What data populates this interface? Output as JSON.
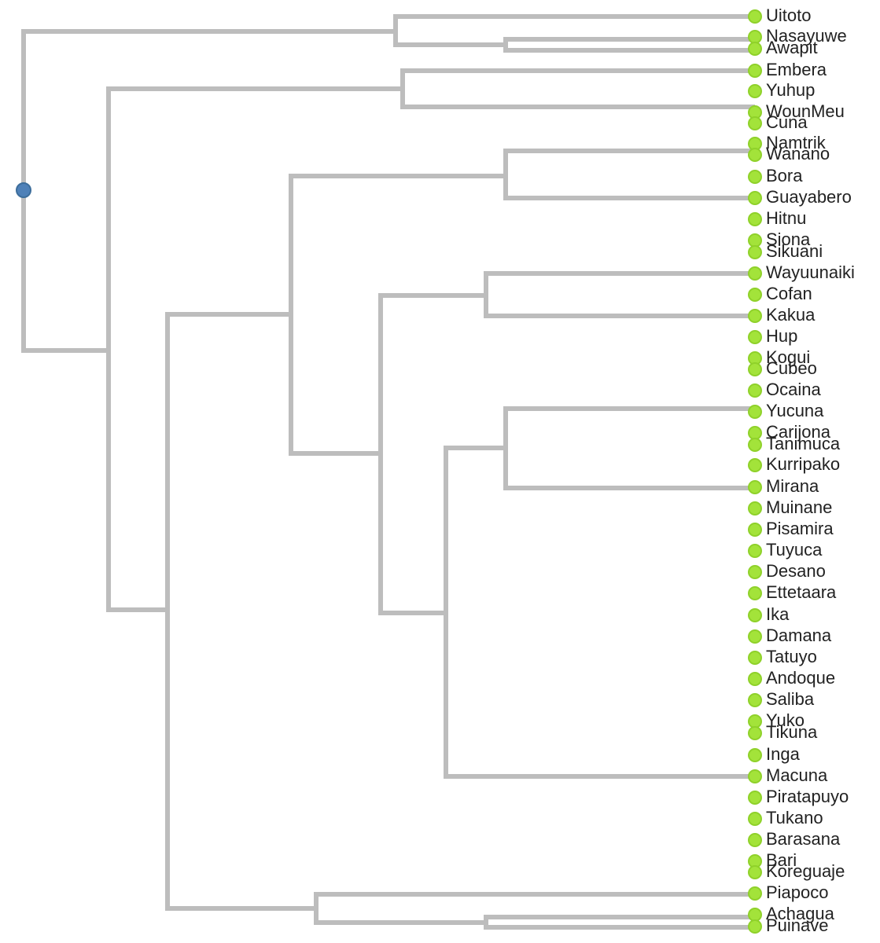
{
  "colors": {
    "branch": "#bdbdbd",
    "leaf_node": "#a3e33a",
    "root_node": "#4f81b8",
    "label": "#222222",
    "background": "#ffffff"
  },
  "leaves": [
    "Uitoto",
    "Nasayuwe",
    "Awapit",
    "Embera",
    "Yuhup",
    "WounMeu",
    "Cuna",
    "Namtrik",
    "Wanano",
    "Bora",
    "Guayabero",
    "Hitnu",
    "Siona",
    "Sikuani",
    "Wayuunaiki",
    "Cofan",
    "Kakua",
    "Hup",
    "Kogui",
    "Cubeo",
    "Ocaina",
    "Yucuna",
    "Carijona",
    "Tanimuca",
    "Kurripako",
    "Mirana",
    "Muinane",
    "Pisamira",
    "Tuyuca",
    "Desano",
    "Ettetaara",
    "Ika",
    "Damana",
    "Tatuyo",
    "Andoque",
    "Saliba",
    "Yuko",
    "Tikuna",
    "Inga",
    "Macuna",
    "Piratapuyo",
    "Tukano",
    "Barasana",
    "Bari",
    "Koreguaje",
    "Piapoco",
    "Achagua",
    "Puinave"
  ]
}
